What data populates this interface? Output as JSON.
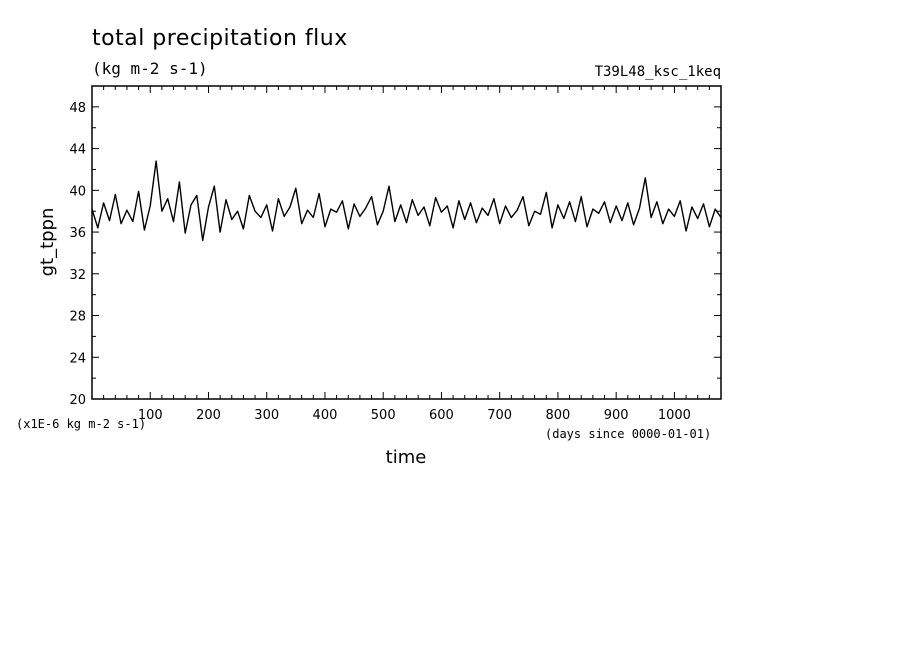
{
  "chart_data": {
    "type": "line",
    "title": "total precipitation flux",
    "subtitle": "(kg m-2 s-1)",
    "run_label": "T39L48_ksc_1keq",
    "xlabel": "time",
    "ylabel": "gt_tppn",
    "x_units": "(days since 0000-01-01)",
    "y_units": "(x1E-6 kg m-2 s-1)",
    "xlim": [
      0,
      1080
    ],
    "ylim": [
      20,
      50
    ],
    "x_ticks": [
      100,
      200,
      300,
      400,
      500,
      600,
      700,
      800,
      900,
      1000
    ],
    "x_tick_labels": [
      "100",
      "200",
      "300",
      "400",
      "500",
      "600",
      "700",
      "800",
      "900",
      "1000"
    ],
    "y_ticks": [
      20,
      24,
      28,
      32,
      36,
      40,
      44,
      48
    ],
    "y_tick_labels": [
      "20",
      "24",
      "28",
      "32",
      "36",
      "40",
      "44",
      "48"
    ],
    "grid": false,
    "series": [
      {
        "x": [
          0,
          10,
          20,
          30,
          40,
          50,
          60,
          70,
          80,
          90,
          100,
          110,
          120,
          130,
          140,
          150,
          160,
          170,
          180,
          190,
          200,
          210,
          220,
          230,
          240,
          250,
          260,
          270,
          280,
          290,
          300,
          310,
          320,
          330,
          340,
          350,
          360,
          370,
          380,
          390,
          400,
          410,
          420,
          430,
          440,
          450,
          460,
          470,
          480,
          490,
          500,
          510,
          520,
          530,
          540,
          550,
          560,
          570,
          580,
          590,
          600,
          610,
          620,
          630,
          640,
          650,
          660,
          670,
          680,
          690,
          700,
          710,
          720,
          730,
          740,
          750,
          760,
          770,
          780,
          790,
          800,
          810,
          820,
          830,
          840,
          850,
          860,
          870,
          880,
          890,
          900,
          910,
          920,
          930,
          940,
          950,
          960,
          970,
          980,
          990,
          1000,
          1010,
          1020,
          1030,
          1040,
          1050,
          1060,
          1070,
          1080
        ],
        "y": [
          38.2,
          36.4,
          38.8,
          37.1,
          39.6,
          36.8,
          38.1,
          37.0,
          39.9,
          36.2,
          38.5,
          42.8,
          38.0,
          39.2,
          37.0,
          40.8,
          35.9,
          38.6,
          39.5,
          35.2,
          38.4,
          40.4,
          36.0,
          39.1,
          37.2,
          38.0,
          36.3,
          39.5,
          38.0,
          37.4,
          38.6,
          36.1,
          39.2,
          37.5,
          38.4,
          40.2,
          36.8,
          38.1,
          37.4,
          39.7,
          36.5,
          38.2,
          37.9,
          39.0,
          36.3,
          38.7,
          37.5,
          38.3,
          39.4,
          36.7,
          38.0,
          40.4,
          37.0,
          38.6,
          36.9,
          39.1,
          37.6,
          38.4,
          36.6,
          39.3,
          37.9,
          38.5,
          36.4,
          39.0,
          37.2,
          38.8,
          36.9,
          38.3,
          37.6,
          39.2,
          36.8,
          38.5,
          37.4,
          38.1,
          39.4,
          36.6,
          38.0,
          37.7,
          39.8,
          36.4,
          38.6,
          37.3,
          38.9,
          37.0,
          39.4,
          36.5,
          38.2,
          37.8,
          38.9,
          36.9,
          38.5,
          37.1,
          38.8,
          36.7,
          38.3,
          41.2,
          37.4,
          38.9,
          36.8,
          38.2,
          37.5,
          39.0,
          36.1,
          38.4,
          37.3,
          38.7,
          36.5,
          38.2,
          37.4
        ]
      }
    ]
  }
}
